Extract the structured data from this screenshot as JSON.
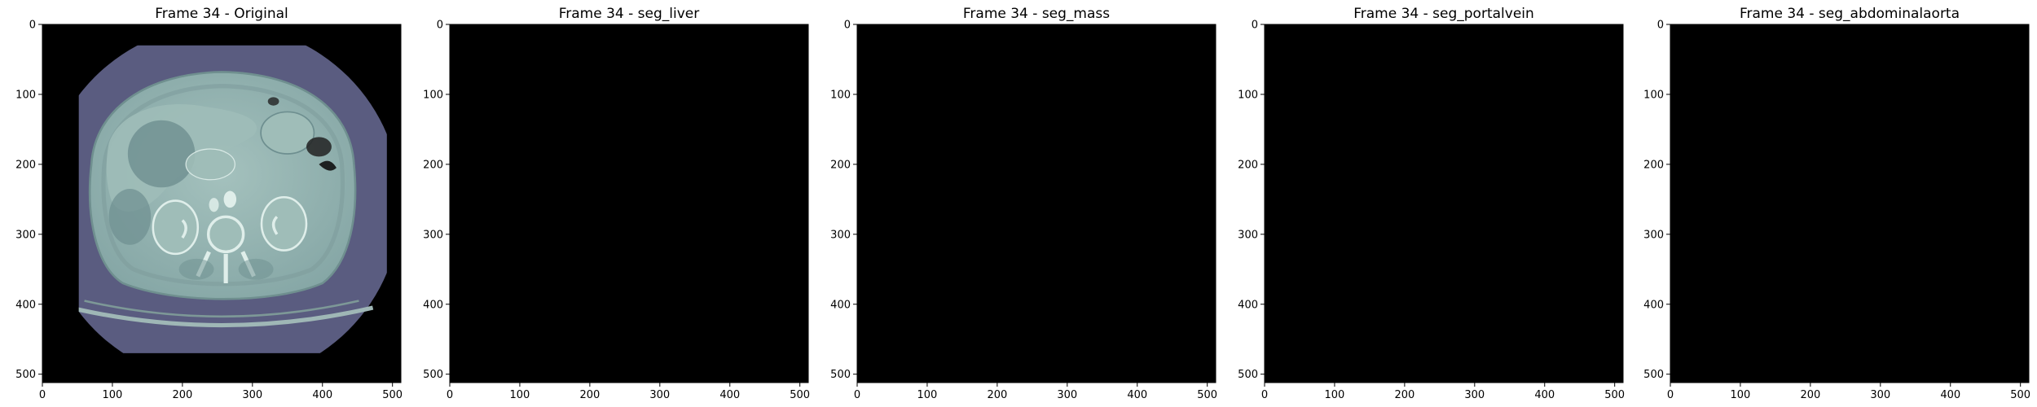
{
  "figure": {
    "panels": [
      {
        "title": "Frame 34 - Original",
        "mode": "original",
        "overlay": null
      },
      {
        "title": "Frame 34 - seg_liver",
        "mode": "gray",
        "overlay": "liver"
      },
      {
        "title": "Frame 34 - seg_mass",
        "mode": "gray",
        "overlay": "mass"
      },
      {
        "title": "Frame 34 - seg_portalvein",
        "mode": "gray",
        "overlay": "portalvein"
      },
      {
        "title": "Frame 34 - seg_abdominalaorta",
        "mode": "gray",
        "overlay": null
      }
    ],
    "x_ticks": [
      "0",
      "100",
      "200",
      "300",
      "400",
      "500"
    ],
    "y_ticks": [
      "0",
      "100",
      "200",
      "300",
      "400",
      "500"
    ],
    "image_size": [
      512,
      512
    ],
    "colors": {
      "original_body": "#8fb0ae",
      "original_background_disk": "#5a5c80",
      "gray_body": "#7a7a7a",
      "gray_background_disk": "#4a4a4a",
      "overlay": "#d06060"
    }
  }
}
